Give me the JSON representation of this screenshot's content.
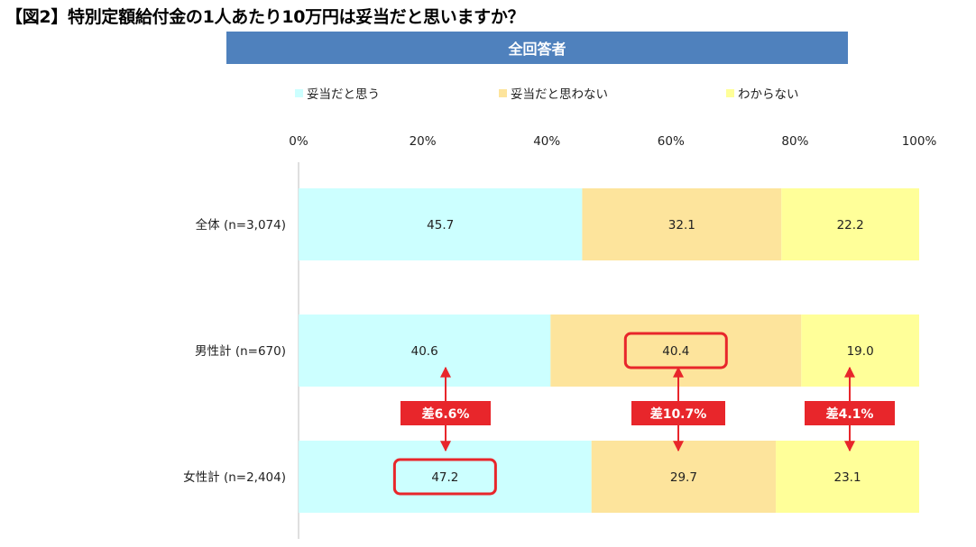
{
  "figure_title": "【図2】特別定額給付金の1人あたり10万円は妥当だと思いますか？",
  "banner": "全回答者",
  "colors": {
    "banner": "#4f81bd",
    "diff_box": "#e8262b",
    "highlight": "#e8262b"
  },
  "chart_data": {
    "type": "bar",
    "orientation": "horizontal",
    "stacked": true,
    "title": "",
    "xlim": [
      0,
      100
    ],
    "x_ticks": [
      "0%",
      "20%",
      "40%",
      "60%",
      "80%",
      "100%"
    ],
    "x_tick_values": [
      0,
      20,
      40,
      60,
      80,
      100
    ],
    "legend_position": "top",
    "categories": [
      "全体 (n=3,074)",
      "男性計 (n=670)",
      "女性計 (n=2,404)"
    ],
    "series": [
      {
        "name": "妥当だと思う",
        "color": "#ccffff",
        "values": [
          45.7,
          40.6,
          47.2
        ],
        "labels": [
          "45.7",
          "40.6",
          "47.2"
        ]
      },
      {
        "name": "妥当だと思わない",
        "color": "#fde49c",
        "values": [
          32.1,
          40.4,
          29.7
        ],
        "labels": [
          "32.1",
          "40.4",
          "29.7"
        ]
      },
      {
        "name": "わからない",
        "color": "#ffff99",
        "values": [
          22.2,
          19.0,
          23.1
        ],
        "labels": [
          "22.2",
          "19.0",
          "23.1"
        ]
      }
    ],
    "annotations": [
      {
        "text": "差6.6%",
        "series": 0
      },
      {
        "text": "差10.7%",
        "series": 1
      },
      {
        "text": "差4.1%",
        "series": 2
      }
    ],
    "highlights": [
      {
        "category": 1,
        "series": 1
      },
      {
        "category": 2,
        "series": 0
      }
    ]
  }
}
